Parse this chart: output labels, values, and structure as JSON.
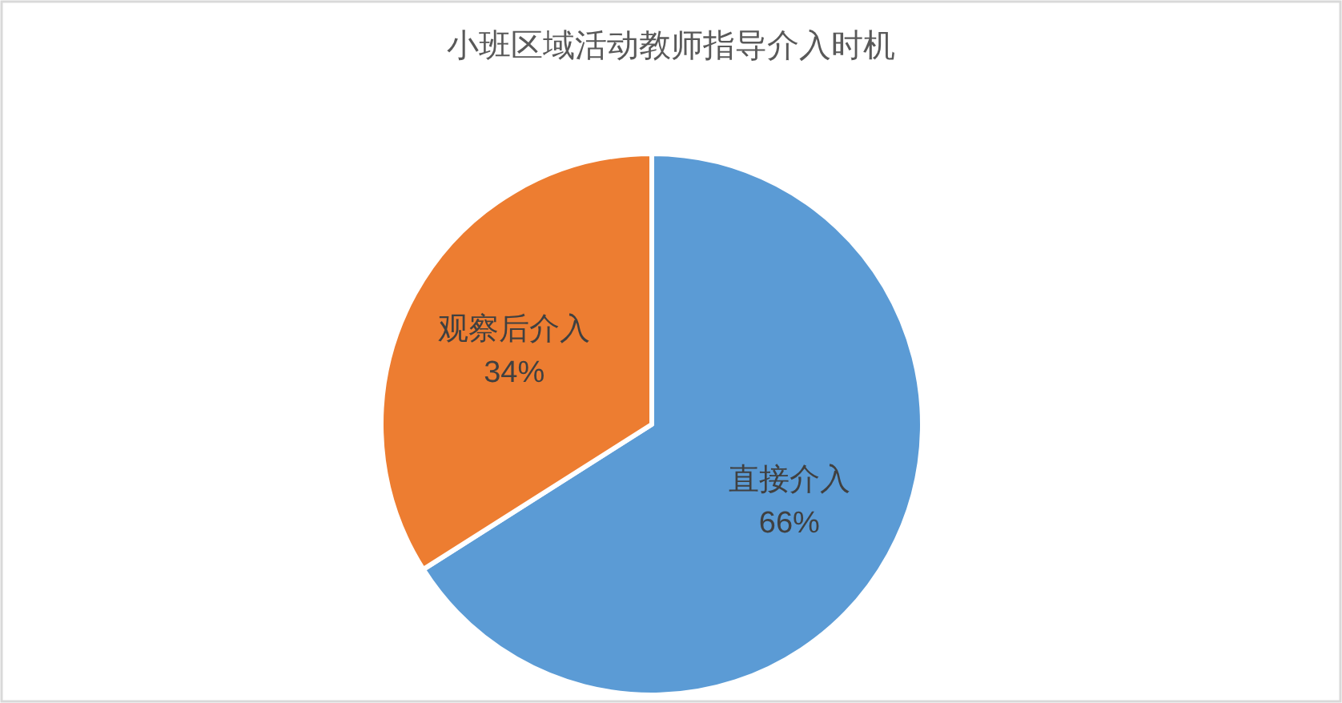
{
  "chart_data": {
    "type": "pie",
    "title": "小班区域活动教师指导介入时机",
    "categories": [
      "直接介入",
      "观察后介入"
    ],
    "values": [
      66,
      34
    ],
    "colors": [
      "#5b9bd5",
      "#ed7d31"
    ],
    "value_labels": [
      "66%",
      "34%"
    ]
  }
}
